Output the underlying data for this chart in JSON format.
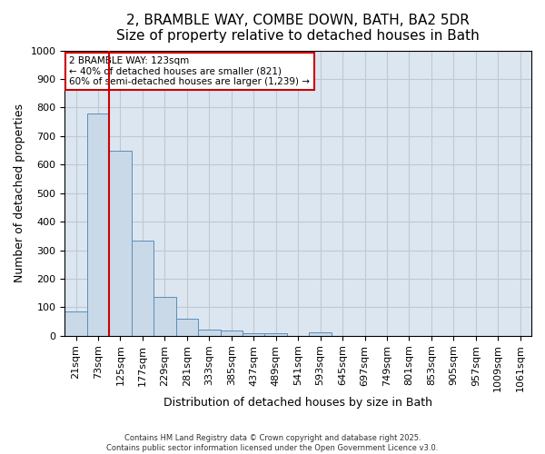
{
  "title_line1": "2, BRAMBLE WAY, COMBE DOWN, BATH, BA2 5DR",
  "title_line2": "Size of property relative to detached houses in Bath",
  "bar_values": [
    85,
    780,
    648,
    335,
    135,
    60,
    22,
    18,
    8,
    8,
    0,
    11,
    0,
    0,
    0,
    0,
    0,
    0,
    0,
    0,
    0
  ],
  "bar_labels": [
    "21sqm",
    "73sqm",
    "125sqm",
    "177sqm",
    "229sqm",
    "281sqm",
    "333sqm",
    "385sqm",
    "437sqm",
    "489sqm",
    "541sqm",
    "593sqm",
    "645sqm",
    "697sqm",
    "749sqm",
    "801sqm",
    "853sqm",
    "905sqm",
    "957sqm",
    "1009sqm",
    "1061sqm"
  ],
  "bar_color": "#c9d9e8",
  "bar_edge_color": "#5b8db8",
  "xlabel": "Distribution of detached houses by size in Bath",
  "ylabel": "Number of detached properties",
  "ylim": [
    0,
    1000
  ],
  "yticks": [
    0,
    100,
    200,
    300,
    400,
    500,
    600,
    700,
    800,
    900,
    1000
  ],
  "property_line_x": 1.5,
  "annotation_text": "2 BRAMBLE WAY: 123sqm\n← 40% of detached houses are smaller (821)\n60% of semi-detached houses are larger (1,239) →",
  "annotation_box_color": "#ffffff",
  "annotation_box_edge_color": "#cc0000",
  "property_line_color": "#cc0000",
  "grid_color": "#c0c8d0",
  "background_color": "#dce6f0",
  "footer_line1": "Contains HM Land Registry data © Crown copyright and database right 2025.",
  "footer_line2": "Contains public sector information licensed under the Open Government Licence v3.0.",
  "title_fontsize": 11,
  "axis_fontsize": 9,
  "tick_fontsize": 8
}
